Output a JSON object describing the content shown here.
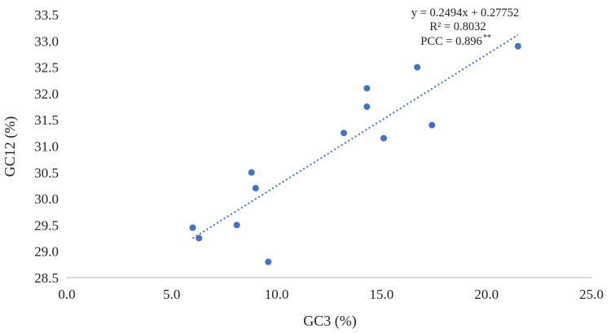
{
  "chart_data": {
    "type": "scatter",
    "xlabel": "GC3 (%)",
    "ylabel": "GC12 (%)",
    "xlim": [
      0,
      25
    ],
    "ylim": [
      28.5,
      33.5
    ],
    "x_ticks": [
      "0.0",
      "5.0",
      "10.0",
      "15.0",
      "20.0",
      "25.0"
    ],
    "y_ticks": [
      "28.5",
      "29.0",
      "29.5",
      "30.0",
      "30.5",
      "31.0",
      "31.5",
      "32.0",
      "32.5",
      "33.0",
      "33.5"
    ],
    "grid": false,
    "legend": "none",
    "colors": {
      "points": "#4472C4",
      "trendline": "#4472C4",
      "axis": "#b0b0b0"
    },
    "points": [
      {
        "x": 6.0,
        "y": 29.45
      },
      {
        "x": 6.3,
        "y": 29.25
      },
      {
        "x": 8.1,
        "y": 29.5
      },
      {
        "x": 8.8,
        "y": 30.5
      },
      {
        "x": 9.0,
        "y": 30.2
      },
      {
        "x": 9.6,
        "y": 28.8
      },
      {
        "x": 13.2,
        "y": 31.25
      },
      {
        "x": 14.3,
        "y": 32.1
      },
      {
        "x": 14.3,
        "y": 31.75
      },
      {
        "x": 15.1,
        "y": 31.15
      },
      {
        "x": 16.7,
        "y": 32.5
      },
      {
        "x": 17.4,
        "y": 31.4
      },
      {
        "x": 21.5,
        "y": 32.9
      }
    ],
    "trendline": {
      "type": "linear-dotted",
      "x_range": [
        6.0,
        21.5
      ],
      "slope": 0.2494,
      "intercept": 27.752
    },
    "annotation": {
      "equation": "y = 0.2494x + 0.27752",
      "r_squared": "R² = 0.8032",
      "pcc": "PCC = 0.896",
      "pcc_marker": "**"
    }
  }
}
